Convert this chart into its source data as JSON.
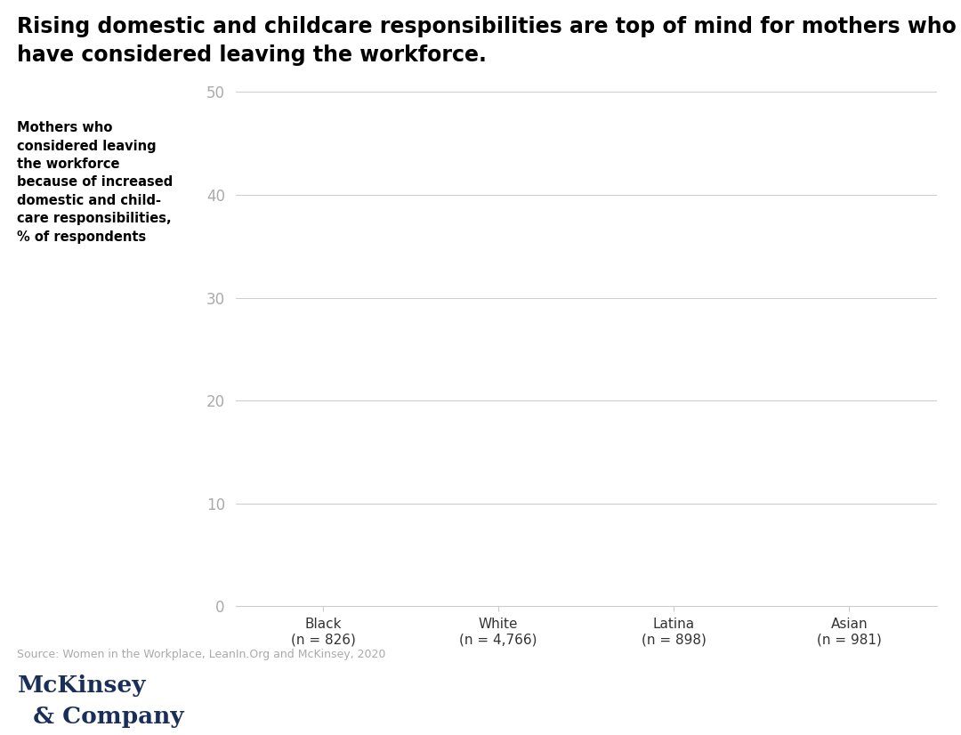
{
  "title_line1": "Rising domestic and childcare responsibilities are top of mind for mothers who",
  "title_line2": "have considered leaving the workforce.",
  "ylabel_lines": [
    "Mothers who",
    "considered leaving",
    "the workforce",
    "because of increased",
    "domestic and child-",
    "care responsibilities,",
    "% of respondents"
  ],
  "categories": [
    "Black\n(n = 826)",
    "White\n(n = 4,766)",
    "Latina\n(n = 898)",
    "Asian\n(n = 981)"
  ],
  "values": [
    0,
    0,
    0,
    0
  ],
  "ylim": [
    0,
    50
  ],
  "yticks": [
    0,
    10,
    20,
    30,
    40,
    50
  ],
  "source_text": "Source: Women in the Workplace, LeanIn.Org and McKinsey, 2020",
  "mckinsey_line1": "McKinsey",
  "mckinsey_line2": "  & Company",
  "background_color": "#ffffff",
  "axis_color": "#cccccc",
  "tick_label_color": "#aaaaaa",
  "title_color": "#000000",
  "ylabel_color": "#000000",
  "source_color": "#aaaaaa",
  "mckinsey_color": "#1a2e5a"
}
